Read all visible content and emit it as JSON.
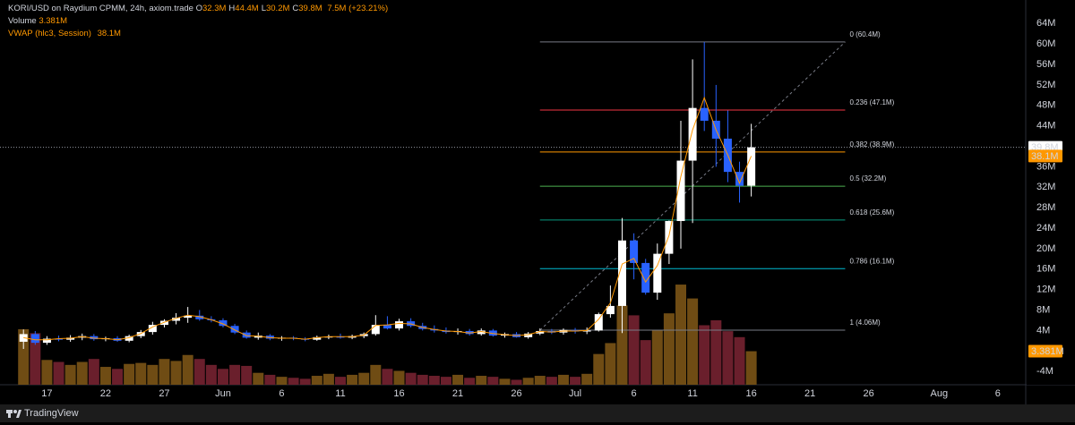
{
  "header": {
    "symbol": "KORI/USD on Raydium CPMM, 24h, axiom.trade",
    "ohlc": [
      {
        "key": "O",
        "value": "32.3M"
      },
      {
        "key": "H",
        "value": "44.4M"
      },
      {
        "key": "L",
        "value": "30.2M"
      },
      {
        "key": "C",
        "value": "39.8M"
      }
    ],
    "change": "7.5M (+23.21%)",
    "volume": {
      "name": "Volume",
      "value": "3.381M"
    },
    "vwap": {
      "name": "VWAP (hlc3, Session)",
      "value": "38.1M"
    }
  },
  "chart_data": {
    "type": "candlestick",
    "x": [
      "05-15",
      "05-16",
      "05-17",
      "05-18",
      "05-19",
      "05-20",
      "05-21",
      "05-22",
      "05-23",
      "05-24",
      "05-25",
      "05-26",
      "05-27",
      "05-28",
      "05-29",
      "05-30",
      "05-31",
      "06-01",
      "06-02",
      "06-03",
      "06-04",
      "06-05",
      "06-06",
      "06-07",
      "06-08",
      "06-09",
      "06-10",
      "06-11",
      "06-12",
      "06-13",
      "06-14",
      "06-15",
      "06-16",
      "06-17",
      "06-18",
      "06-19",
      "06-20",
      "06-21",
      "06-22",
      "06-23",
      "06-24",
      "06-25",
      "06-26",
      "06-27",
      "06-28",
      "06-29",
      "06-30",
      "07-01",
      "07-02",
      "07-03",
      "07-04",
      "07-05",
      "07-06",
      "07-07",
      "07-08",
      "07-09",
      "07-10",
      "07-11",
      "07-12",
      "07-13",
      "07-14",
      "07-15",
      "07-16"
    ],
    "open": [
      1.8,
      3.3,
      1.6,
      2.4,
      2.2,
      2.6,
      2.9,
      2.3,
      2.5,
      2.0,
      2.9,
      3.7,
      5.1,
      5.9,
      6.5,
      6.9,
      6.2,
      6.0,
      4.9,
      3.6,
      2.6,
      3.0,
      2.4,
      2.6,
      2.4,
      2.2,
      2.7,
      2.8,
      2.6,
      2.9,
      3.3,
      5.1,
      4.4,
      5.8,
      4.9,
      4.3,
      4.0,
      3.7,
      3.9,
      3.3,
      4.0,
      3.0,
      3.3,
      2.7,
      3.4,
      3.9,
      3.6,
      4.1,
      3.8,
      4.0,
      7.2,
      8.8,
      21.6,
      17.2,
      11.4,
      19.0,
      25.4,
      37.2,
      47.5,
      45.0,
      41.5,
      35.0,
      32.3
    ],
    "high": [
      4.2,
      3.9,
      2.9,
      3.0,
      3.1,
      3.4,
      3.3,
      2.8,
      2.9,
      3.2,
      4.1,
      5.7,
      6.2,
      7.4,
      8.6,
      8.0,
      6.8,
      6.4,
      5.3,
      4.0,
      3.6,
      3.3,
      2.9,
      2.9,
      2.7,
      3.0,
      3.2,
      3.4,
      3.2,
      3.6,
      7.0,
      6.8,
      6.3,
      6.4,
      5.5,
      5.0,
      4.6,
      4.4,
      4.3,
      4.4,
      4.3,
      3.6,
      3.7,
      3.7,
      4.4,
      4.3,
      4.4,
      4.5,
      4.6,
      7.5,
      12.8,
      26.0,
      23.0,
      18.0,
      21.0,
      25.5,
      45.0,
      57.0,
      60.4,
      52.0,
      47.0,
      37.0,
      44.4
    ],
    "low": [
      0.4,
      1.2,
      1.2,
      1.9,
      1.8,
      2.1,
      2.0,
      1.9,
      1.8,
      1.7,
      2.5,
      3.2,
      4.6,
      5.2,
      5.5,
      5.9,
      5.6,
      4.6,
      3.3,
      2.4,
      2.2,
      2.1,
      2.0,
      2.1,
      1.9,
      2.0,
      2.3,
      2.4,
      2.3,
      2.5,
      3.0,
      4.2,
      4.0,
      4.6,
      4.0,
      3.6,
      3.4,
      3.2,
      3.0,
      3.0,
      2.8,
      2.6,
      2.6,
      2.4,
      3.1,
      3.3,
      3.2,
      3.4,
      3.3,
      3.8,
      6.5,
      3.5,
      14.0,
      11.0,
      10.0,
      17.0,
      20.0,
      25.0,
      43.0,
      36.0,
      33.0,
      29.0,
      30.2
    ],
    "close": [
      3.3,
      1.6,
      2.4,
      2.2,
      2.6,
      2.9,
      2.3,
      2.5,
      2.0,
      2.9,
      3.7,
      5.1,
      5.9,
      6.5,
      6.9,
      6.2,
      6.0,
      4.9,
      3.6,
      2.6,
      3.0,
      2.4,
      2.6,
      2.4,
      2.2,
      2.7,
      2.8,
      2.6,
      2.9,
      3.3,
      5.1,
      4.4,
      5.8,
      4.9,
      4.3,
      4.0,
      3.7,
      3.9,
      3.3,
      4.0,
      3.0,
      3.3,
      2.7,
      3.4,
      3.9,
      3.6,
      4.1,
      3.8,
      4.0,
      7.2,
      8.8,
      21.6,
      17.2,
      11.4,
      19.0,
      25.4,
      37.2,
      47.5,
      45.0,
      41.5,
      35.0,
      32.3,
      39.8
    ],
    "up_color": "#ffffff",
    "down_color": "#2962ff",
    "volume": {
      "values": [
        5.6,
        5.2,
        2.5,
        2.3,
        2.0,
        2.3,
        2.6,
        1.8,
        1.6,
        2.1,
        2.2,
        2.0,
        2.6,
        2.4,
        3.0,
        2.6,
        2.0,
        1.6,
        2.0,
        1.9,
        1.2,
        1.0,
        0.8,
        0.7,
        0.6,
        0.9,
        1.1,
        0.8,
        1.0,
        1.2,
        2.0,
        1.6,
        1.4,
        1.2,
        1.0,
        0.9,
        0.8,
        1.0,
        0.7,
        0.9,
        0.8,
        0.6,
        0.5,
        0.7,
        0.9,
        0.8,
        1.0,
        0.8,
        1.1,
        3.1,
        4.2,
        8.0,
        7.0,
        4.5,
        5.5,
        7.2,
        10.1,
        8.7,
        6.0,
        6.5,
        5.4,
        4.8,
        3.381
      ],
      "up_color": "#6f4c14",
      "down_color": "#6a1f2c",
      "ylim": [
        0,
        12
      ]
    },
    "vwap": {
      "color": "#ff9800",
      "values": [
        2.6,
        2.2,
        2.2,
        2.4,
        2.5,
        2.8,
        2.5,
        2.4,
        2.2,
        2.6,
        3.4,
        4.7,
        5.6,
        6.4,
        7.0,
        6.7,
        6.1,
        5.3,
        4.1,
        3.0,
        2.9,
        2.6,
        2.5,
        2.5,
        2.3,
        2.6,
        2.8,
        2.8,
        2.8,
        3.1,
        5.0,
        5.1,
        5.4,
        5.3,
        4.6,
        4.2,
        3.9,
        3.8,
        3.5,
        3.8,
        3.4,
        3.2,
        3.0,
        3.2,
        3.8,
        3.7,
        3.9,
        3.9,
        4.0,
        6.2,
        9.4,
        17.0,
        18.1,
        13.5,
        16.7,
        22.6,
        34.1,
        43.2,
        49.5,
        43.2,
        38.3,
        32.8,
        38.1
      ]
    },
    "xlim": [
      "05-13",
      "08-08"
    ],
    "xticks": [
      {
        "value": "05-17",
        "label": "17"
      },
      {
        "value": "05-22",
        "label": "22"
      },
      {
        "value": "05-27",
        "label": "27"
      },
      {
        "value": "06-01",
        "label": "Jun"
      },
      {
        "value": "06-06",
        "label": "6"
      },
      {
        "value": "06-11",
        "label": "11"
      },
      {
        "value": "06-16",
        "label": "16"
      },
      {
        "value": "06-21",
        "label": "21"
      },
      {
        "value": "06-26",
        "label": "26"
      },
      {
        "value": "07-01",
        "label": "Jul"
      },
      {
        "value": "07-06",
        "label": "6"
      },
      {
        "value": "07-11",
        "label": "11"
      },
      {
        "value": "07-16",
        "label": "16"
      },
      {
        "value": "07-21",
        "label": "21"
      },
      {
        "value": "07-26",
        "label": "26"
      },
      {
        "value": "08-01",
        "label": "Aug"
      },
      {
        "value": "08-06",
        "label": "6"
      }
    ],
    "ylim": [
      -6.6,
      68.6
    ],
    "yticks": [
      {
        "value": 64,
        "label": "64M"
      },
      {
        "value": 60,
        "label": "60M"
      },
      {
        "value": 56,
        "label": "56M"
      },
      {
        "value": 52,
        "label": "52M"
      },
      {
        "value": 48,
        "label": "48M"
      },
      {
        "value": 44,
        "label": "44M"
      },
      {
        "value": 36,
        "label": "36M"
      },
      {
        "value": 32,
        "label": "32M"
      },
      {
        "value": 28,
        "label": "28M"
      },
      {
        "value": 24,
        "label": "24M"
      },
      {
        "value": 20,
        "label": "20M"
      },
      {
        "value": 16,
        "label": "16M"
      },
      {
        "value": 12,
        "label": "12M"
      },
      {
        "value": 8,
        "label": "8M"
      },
      {
        "value": 4,
        "label": "4M"
      },
      {
        "value": -4,
        "label": "-4M"
      }
    ],
    "fib": {
      "x": [
        "06-28",
        "07-24"
      ],
      "levels": [
        {
          "value": 60.4,
          "label": "0 (60.4M)",
          "color": "#787b86"
        },
        {
          "value": 47.1,
          "label": "0.236 (47.1M)",
          "color": "#f23645"
        },
        {
          "value": 38.9,
          "label": "0.382 (38.9M)",
          "color": "#ff9800"
        },
        {
          "value": 32.2,
          "label": "0.5 (32.2M)",
          "color": "#4caf50"
        },
        {
          "value": 25.6,
          "label": "0.618 (25.6M)",
          "color": "#089981"
        },
        {
          "value": 16.1,
          "label": "0.786 (16.1M)",
          "color": "#00bcd4"
        },
        {
          "value": 4.06,
          "label": "1 (4.06M)",
          "color": "#787b86"
        }
      ]
    },
    "price_tags": [
      {
        "value": 39.8,
        "label": "39.8M",
        "color": "#ffffff",
        "axis": "price"
      },
      {
        "value": 38.1,
        "label": "38.1M",
        "color": "#ff9800",
        "axis": "price"
      },
      {
        "value": 3.381,
        "label": "3.381M",
        "color": "#ff9800",
        "axis": "volume"
      }
    ]
  },
  "footer": {
    "brand": "TradingView"
  }
}
